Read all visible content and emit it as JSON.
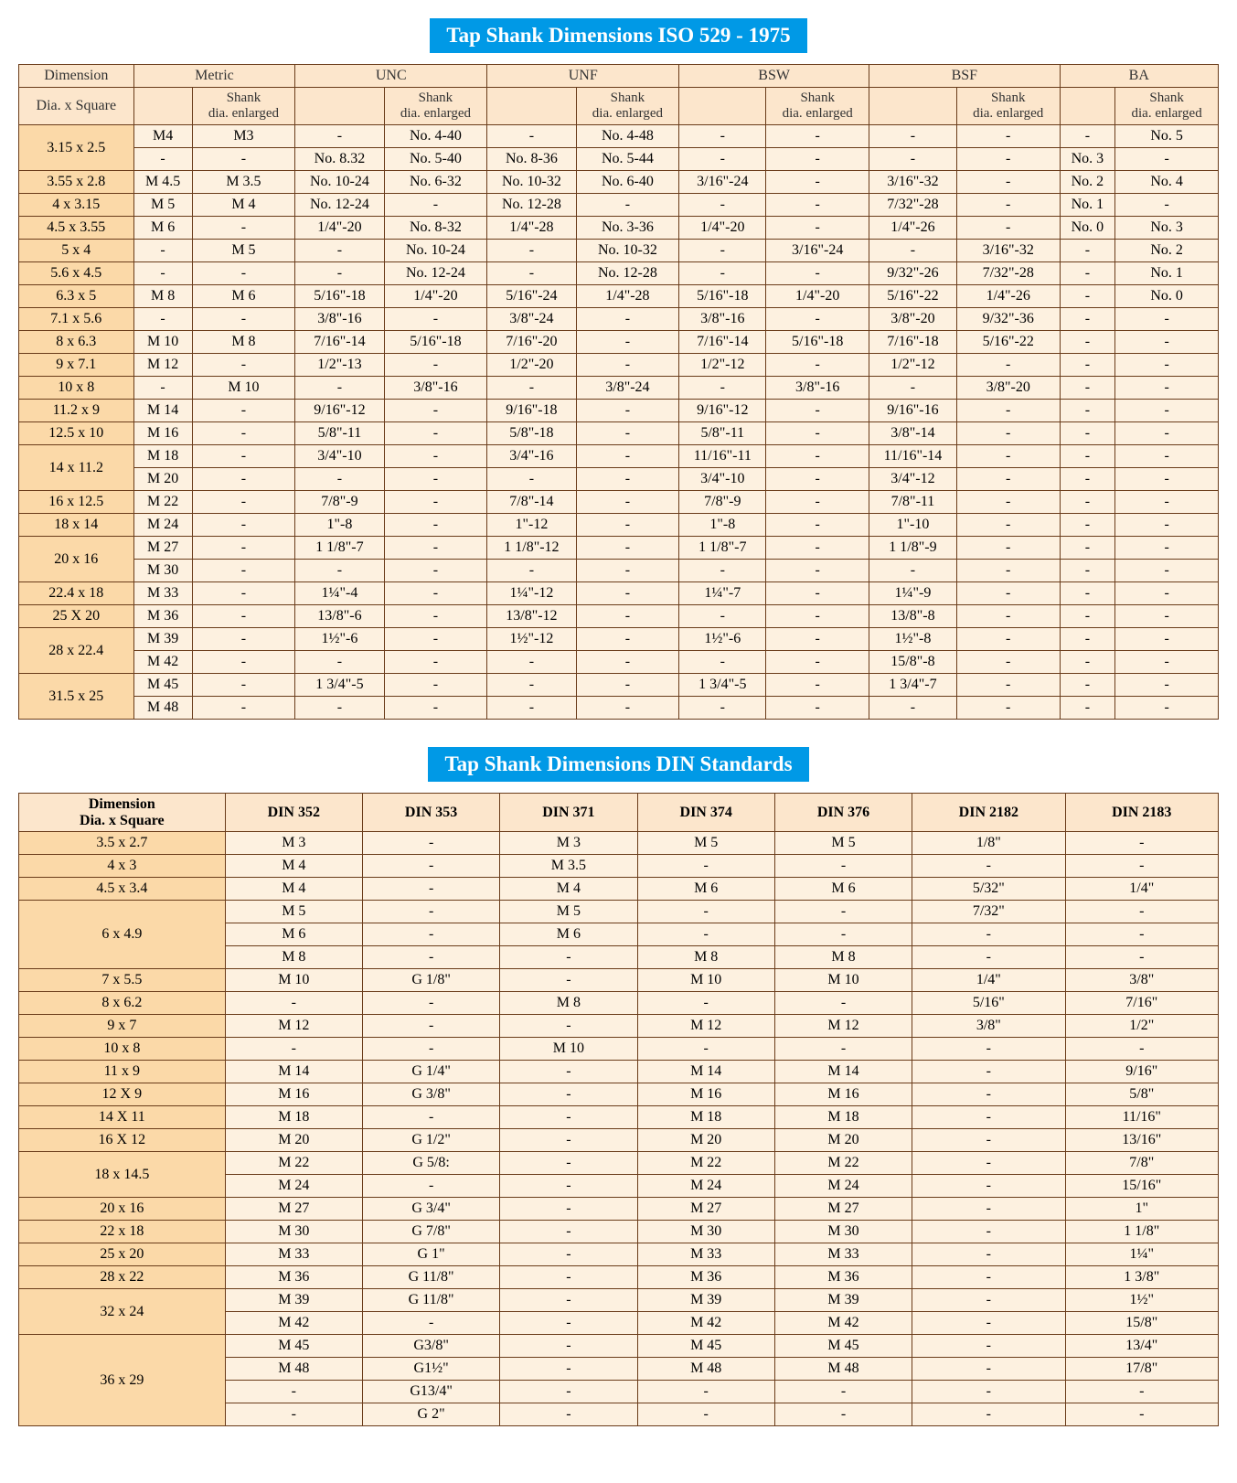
{
  "titles": {
    "iso": "Tap Shank Dimensions ISO 529 - 1975",
    "din": "Tap Shank Dimensions DIN Standards"
  },
  "iso": {
    "top_headers": [
      "Dimension",
      "Metric",
      "UNC",
      "UNF",
      "BSW",
      "BSF",
      "BA"
    ],
    "second_row_first": "Dia. x Square",
    "sub_enlarged": "Shank dia. enlarged",
    "rows": [
      {
        "dim": "3.15 x 2.5",
        "span": 2,
        "data": [
          [
            "M4",
            "M3",
            "-",
            "No. 4-40",
            "-",
            "No. 4-48",
            "-",
            "-",
            "-",
            "-",
            "-",
            "No. 5"
          ],
          [
            "-",
            "-",
            "No. 8.32",
            "No. 5-40",
            "No. 8-36",
            "No. 5-44",
            "-",
            "-",
            "-",
            "-",
            "No. 3",
            "-"
          ]
        ]
      },
      {
        "dim": "3.55 x 2.8",
        "span": 1,
        "data": [
          [
            "M 4.5",
            "M 3.5",
            "No. 10-24",
            "No. 6-32",
            "No. 10-32",
            "No. 6-40",
            "3/16\"-24",
            "-",
            "3/16\"-32",
            "-",
            "No. 2",
            "No. 4"
          ]
        ]
      },
      {
        "dim": "4 x 3.15",
        "span": 1,
        "data": [
          [
            "M 5",
            "M 4",
            "No. 12-24",
            "-",
            "No. 12-28",
            "-",
            "-",
            "-",
            "7/32\"-28",
            "-",
            "No. 1",
            "-"
          ]
        ]
      },
      {
        "dim": "4.5 x 3.55",
        "span": 1,
        "data": [
          [
            "M 6",
            "-",
            "1/4\"-20",
            "No. 8-32",
            "1/4\"-28",
            "No. 3-36",
            "1/4\"-20",
            "-",
            "1/4\"-26",
            "-",
            "No. 0",
            "No. 3"
          ]
        ]
      },
      {
        "dim": "5 x 4",
        "span": 1,
        "data": [
          [
            "-",
            "M 5",
            "-",
            "No. 10-24",
            "-",
            "No. 10-32",
            "-",
            "3/16\"-24",
            "-",
            "3/16\"-32",
            "-",
            "No. 2"
          ]
        ]
      },
      {
        "dim": "5.6 x 4.5",
        "span": 1,
        "data": [
          [
            "-",
            "-",
            "-",
            "No. 12-24",
            "-",
            "No. 12-28",
            "-",
            "-",
            "9/32\"-26",
            "7/32\"-28",
            "-",
            "No. 1"
          ]
        ]
      },
      {
        "dim": "6.3 x 5",
        "span": 1,
        "data": [
          [
            "M 8",
            "M 6",
            "5/16\"-18",
            "1/4\"-20",
            "5/16\"-24",
            "1/4\"-28",
            "5/16\"-18",
            "1/4\"-20",
            "5/16\"-22",
            "1/4\"-26",
            "-",
            "No. 0"
          ]
        ]
      },
      {
        "dim": "7.1 x 5.6",
        "span": 1,
        "data": [
          [
            "-",
            "-",
            "3/8\"-16",
            "-",
            "3/8\"-24",
            "-",
            "3/8\"-16",
            "-",
            "3/8\"-20",
            "9/32\"-36",
            "-",
            "-"
          ]
        ]
      },
      {
        "dim": "8 x 6.3",
        "span": 1,
        "data": [
          [
            "M 10",
            "M 8",
            "7/16\"-14",
            "5/16\"-18",
            "7/16\"-20",
            "-",
            "7/16\"-14",
            "5/16\"-18",
            "7/16\"-18",
            "5/16\"-22",
            "-",
            "-"
          ]
        ]
      },
      {
        "dim": "9 x 7.1",
        "span": 1,
        "data": [
          [
            "M 12",
            "-",
            "1/2\"-13",
            "-",
            "1/2\"-20",
            "-",
            "1/2\"-12",
            "-",
            "1/2\"-12",
            "-",
            "-",
            "-"
          ]
        ]
      },
      {
        "dim": "10 x 8",
        "span": 1,
        "data": [
          [
            "-",
            "M 10",
            "-",
            "3/8\"-16",
            "-",
            "3/8\"-24",
            "-",
            "3/8\"-16",
            "-",
            "3/8\"-20",
            "-",
            "-"
          ]
        ]
      },
      {
        "dim": "11.2 x 9",
        "span": 1,
        "data": [
          [
            "M 14",
            "-",
            "9/16\"-12",
            "-",
            "9/16\"-18",
            "-",
            "9/16\"-12",
            "-",
            "9/16\"-16",
            "-",
            "-",
            "-"
          ]
        ]
      },
      {
        "dim": "12.5 x 10",
        "span": 1,
        "data": [
          [
            "M 16",
            "-",
            "5/8\"-11",
            "-",
            "5/8\"-18",
            "-",
            "5/8\"-11",
            "-",
            "3/8\"-14",
            "-",
            "-",
            "-"
          ]
        ]
      },
      {
        "dim": "14 x 11.2",
        "span": 2,
        "data": [
          [
            "M 18",
            "-",
            "3/4\"-10",
            "-",
            "3/4\"-16",
            "-",
            "11/16\"-11",
            "-",
            "11/16\"-14",
            "-",
            "-",
            "-"
          ],
          [
            "M 20",
            "-",
            "-",
            "-",
            "-",
            "-",
            "3/4\"-10",
            "-",
            "3/4\"-12",
            "-",
            "-",
            "-"
          ]
        ]
      },
      {
        "dim": "16 x 12.5",
        "span": 1,
        "data": [
          [
            "M 22",
            "-",
            "7/8\"-9",
            "-",
            "7/8\"-14",
            "-",
            "7/8\"-9",
            "-",
            "7/8\"-11",
            "-",
            "-",
            "-"
          ]
        ]
      },
      {
        "dim": "18 x 14",
        "span": 1,
        "data": [
          [
            "M 24",
            "-",
            "1\"-8",
            "-",
            "1\"-12",
            "-",
            "1\"-8",
            "-",
            "1\"-10",
            "-",
            "-",
            "-"
          ]
        ]
      },
      {
        "dim": "20 x 16",
        "span": 2,
        "data": [
          [
            "M 27",
            "-",
            "1 1/8\"-7",
            "-",
            "1 1/8\"-12",
            "-",
            "1 1/8\"-7",
            "-",
            "1 1/8\"-9",
            "-",
            "-",
            "-"
          ],
          [
            "M 30",
            "-",
            "-",
            "-",
            "-",
            "-",
            "-",
            "-",
            "-",
            "-",
            "-",
            "-"
          ]
        ]
      },
      {
        "dim": "22.4 x 18",
        "span": 1,
        "data": [
          [
            "M 33",
            "-",
            "1¼\"-4",
            "-",
            "1¼\"-12",
            "-",
            "1¼\"-7",
            "-",
            "1¼\"-9",
            "-",
            "-",
            "-"
          ]
        ]
      },
      {
        "dim": "25 X 20",
        "span": 1,
        "data": [
          [
            "M 36",
            "-",
            "13/8\"-6",
            "-",
            "13/8\"-12",
            "-",
            "-",
            "-",
            "13/8\"-8",
            "-",
            "-",
            "-"
          ]
        ]
      },
      {
        "dim": "28 x 22.4",
        "span": 2,
        "data": [
          [
            "M 39",
            "-",
            "1½\"-6",
            "-",
            "1½\"-12",
            "-",
            "1½\"-6",
            "-",
            "1½\"-8",
            "-",
            "-",
            "-"
          ],
          [
            "M 42",
            "-",
            "-",
            "-",
            "-",
            "-",
            "-",
            "-",
            "15/8\"-8",
            "-",
            "-",
            "-"
          ]
        ]
      },
      {
        "dim": "31.5 x 25",
        "span": 2,
        "data": [
          [
            "M 45",
            "-",
            "1 3/4\"-5",
            "-",
            "-",
            "-",
            "1 3/4\"-5",
            "-",
            "1 3/4\"-7",
            "-",
            "-",
            "-"
          ],
          [
            "M 48",
            "-",
            "-",
            "-",
            "-",
            "-",
            "-",
            "-",
            "-",
            "-",
            "-",
            "-"
          ]
        ]
      }
    ]
  },
  "din": {
    "headers": [
      "Dimension\nDia. x Square",
      "DIN 352",
      "DIN 353",
      "DIN 371",
      "DIN 374",
      "DIN 376",
      "DIN 2182",
      "DIN 2183"
    ],
    "rows": [
      {
        "dim": "3.5 x 2.7",
        "span": 1,
        "data": [
          [
            "M 3",
            "-",
            "M 3",
            "M 5",
            "M 5",
            "1/8\"",
            "-"
          ]
        ]
      },
      {
        "dim": "4 x 3",
        "span": 1,
        "data": [
          [
            "M 4",
            "-",
            "M 3.5",
            "-",
            "-",
            "-",
            "-"
          ]
        ]
      },
      {
        "dim": "4.5 x 3.4",
        "span": 1,
        "data": [
          [
            "M 4",
            "-",
            "M 4",
            "M 6",
            "M 6",
            "5/32\"",
            "1/4\""
          ]
        ]
      },
      {
        "dim": "6 x 4.9",
        "span": 3,
        "data": [
          [
            "M 5",
            "-",
            "M 5",
            "-",
            "-",
            "7/32\"",
            "-"
          ],
          [
            "M 6",
            "-",
            "M 6",
            "-",
            "-",
            "-",
            "-"
          ],
          [
            "M 8",
            "-",
            "-",
            "M 8",
            "M 8",
            "-",
            "-"
          ]
        ]
      },
      {
        "dim": "7 x 5.5",
        "span": 1,
        "data": [
          [
            "M 10",
            "G 1/8\"",
            "-",
            "M 10",
            "M 10",
            "1/4\"",
            "3/8\""
          ]
        ]
      },
      {
        "dim": "8 x 6.2",
        "span": 1,
        "data": [
          [
            "-",
            "-",
            "M 8",
            "-",
            "-",
            "5/16\"",
            "7/16\""
          ]
        ]
      },
      {
        "dim": "9 x 7",
        "span": 1,
        "data": [
          [
            "M 12",
            "-",
            "-",
            "M 12",
            "M 12",
            "3/8\"",
            "1/2\""
          ]
        ]
      },
      {
        "dim": "10 x 8",
        "span": 1,
        "data": [
          [
            "-",
            "-",
            "M 10",
            "-",
            "-",
            "-",
            "-"
          ]
        ]
      },
      {
        "dim": "11 x 9",
        "span": 1,
        "data": [
          [
            "M 14",
            "G 1/4\"",
            "-",
            "M 14",
            "M 14",
            "-",
            "9/16\""
          ]
        ]
      },
      {
        "dim": "12 X 9",
        "span": 1,
        "data": [
          [
            "M 16",
            "G 3/8\"",
            "-",
            "M 16",
            "M 16",
            "-",
            "5/8\""
          ]
        ]
      },
      {
        "dim": "14 X 11",
        "span": 1,
        "data": [
          [
            "M 18",
            "-",
            "-",
            "M 18",
            "M 18",
            "-",
            "11/16\""
          ]
        ]
      },
      {
        "dim": "16 X 12",
        "span": 1,
        "data": [
          [
            "M 20",
            "G 1/2\"",
            "-",
            "M 20",
            "M 20",
            "-",
            "13/16\""
          ]
        ]
      },
      {
        "dim": "18 x 14.5",
        "span": 2,
        "data": [
          [
            "M 22",
            "G 5/8:",
            "-",
            "M 22",
            "M 22",
            "-",
            "7/8\""
          ],
          [
            "M 24",
            "-",
            "-",
            "M 24",
            "M 24",
            "-",
            "15/16\""
          ]
        ]
      },
      {
        "dim": "20 x 16",
        "span": 1,
        "data": [
          [
            "M 27",
            "G 3/4\"",
            "-",
            "M 27",
            "M 27",
            "-",
            "1\""
          ]
        ]
      },
      {
        "dim": "22 x 18",
        "span": 1,
        "data": [
          [
            "M 30",
            "G 7/8\"",
            "-",
            "M 30",
            "M 30",
            "-",
            "1 1/8\""
          ]
        ]
      },
      {
        "dim": "25 x 20",
        "span": 1,
        "data": [
          [
            "M 33",
            "G 1\"",
            "-",
            "M 33",
            "M 33",
            "-",
            "1¼\""
          ]
        ]
      },
      {
        "dim": "28 x 22",
        "span": 1,
        "data": [
          [
            "M 36",
            "G 11/8\"",
            "-",
            "M 36",
            "M 36",
            "-",
            "1 3/8\""
          ]
        ]
      },
      {
        "dim": "32 x 24",
        "span": 2,
        "data": [
          [
            "M 39",
            "G 11/8\"",
            "-",
            "M 39",
            "M 39",
            "-",
            "1½\""
          ],
          [
            "M 42",
            "-",
            "-",
            "M 42",
            "M 42",
            "-",
            "15/8\""
          ]
        ]
      },
      {
        "dim": "36 x 29",
        "span": 4,
        "data": [
          [
            "M 45",
            "G3/8\"",
            "-",
            "M 45",
            "M 45",
            "-",
            "13/4\""
          ],
          [
            "M 48",
            "G1½\"",
            "-",
            "M 48",
            "M 48",
            "-",
            "17/8\""
          ],
          [
            "-",
            "G13/4\"",
            "-",
            "-",
            "-",
            "-",
            "-"
          ],
          [
            "-",
            "G 2\"",
            "-",
            "-",
            "-",
            "-",
            "-"
          ]
        ]
      }
    ]
  }
}
